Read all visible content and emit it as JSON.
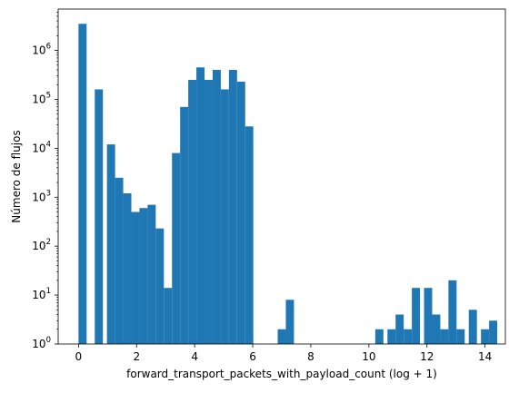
{
  "chart_data": {
    "type": "bar",
    "histogram": true,
    "title": "",
    "xlabel": "forward_transport_packets_with_payload_count (log + 1)",
    "ylabel": "Número de flujos",
    "xlim": [
      -0.7,
      14.7
    ],
    "ylim": [
      1,
      7000000
    ],
    "yscale": "log",
    "grid": false,
    "bar_color": "#1f77b4",
    "bin_width": 0.28,
    "x_ticks": [
      0,
      2,
      4,
      6,
      8,
      10,
      12,
      14
    ],
    "x_tick_labels": [
      "0",
      "2",
      "4",
      "6",
      "8",
      "10",
      "12",
      "14"
    ],
    "y_ticks": [
      1,
      10,
      100,
      1000,
      10000,
      100000,
      1000000
    ],
    "y_tick_labels": [
      "10^0",
      "10^1",
      "10^2",
      "10^3",
      "10^4",
      "10^5",
      "10^6"
    ],
    "bins": [
      {
        "x": 0.0,
        "value": 3500000
      },
      {
        "x": 0.56,
        "value": 160000
      },
      {
        "x": 0.98,
        "value": 12000
      },
      {
        "x": 1.26,
        "value": 2500
      },
      {
        "x": 1.54,
        "value": 1200
      },
      {
        "x": 1.82,
        "value": 500
      },
      {
        "x": 2.1,
        "value": 600
      },
      {
        "x": 2.38,
        "value": 700
      },
      {
        "x": 2.66,
        "value": 230
      },
      {
        "x": 2.94,
        "value": 14
      },
      {
        "x": 3.22,
        "value": 8000
      },
      {
        "x": 3.5,
        "value": 70000
      },
      {
        "x": 3.78,
        "value": 250000
      },
      {
        "x": 4.06,
        "value": 450000
      },
      {
        "x": 4.34,
        "value": 250000
      },
      {
        "x": 4.62,
        "value": 400000
      },
      {
        "x": 4.9,
        "value": 160000
      },
      {
        "x": 5.18,
        "value": 400000
      },
      {
        "x": 5.46,
        "value": 230000
      },
      {
        "x": 5.74,
        "value": 28000
      },
      {
        "x": 6.86,
        "value": 2
      },
      {
        "x": 7.14,
        "value": 8
      },
      {
        "x": 10.22,
        "value": 2
      },
      {
        "x": 10.64,
        "value": 2
      },
      {
        "x": 10.92,
        "value": 4
      },
      {
        "x": 11.2,
        "value": 2
      },
      {
        "x": 11.48,
        "value": 14
      },
      {
        "x": 11.9,
        "value": 14
      },
      {
        "x": 12.18,
        "value": 4
      },
      {
        "x": 12.46,
        "value": 2
      },
      {
        "x": 12.74,
        "value": 20
      },
      {
        "x": 13.02,
        "value": 2
      },
      {
        "x": 13.44,
        "value": 5
      },
      {
        "x": 13.86,
        "value": 2
      },
      {
        "x": 14.14,
        "value": 3
      }
    ]
  }
}
